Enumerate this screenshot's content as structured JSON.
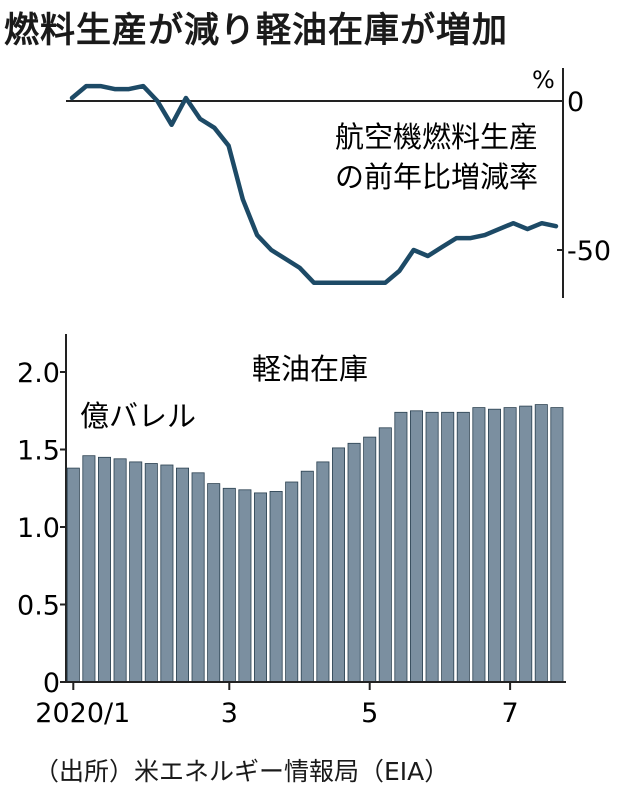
{
  "headline": "燃料生産が減り軽油在庫が増加",
  "source": "（出所）米エネルギー情報局（EIA）",
  "colors": {
    "line": "#1d4a66",
    "bar": "#7b8fa0",
    "bar_edge": "#2b4050",
    "axis": "#222222"
  },
  "chart_data": [
    {
      "type": "line",
      "title": "航空機燃料生産の前年比増減率",
      "title_lines": [
        "航空機燃料生産",
        "の前年比増減率"
      ],
      "unit": "%",
      "y_ticks": [
        {
          "value": 0,
          "label": "0"
        },
        {
          "value": -50,
          "label": "-50"
        }
      ],
      "ylim": [
        -65,
        6
      ],
      "x": [
        0,
        1,
        2,
        3,
        4,
        5,
        6,
        7,
        8,
        9,
        10,
        11,
        12,
        13,
        14,
        15,
        16,
        17,
        18,
        19,
        20,
        21,
        22,
        23,
        24,
        25,
        26,
        27,
        28,
        29,
        30,
        31,
        32,
        33,
        34
      ],
      "values": [
        1,
        5,
        5,
        4,
        4,
        5,
        0,
        -8,
        1,
        -6,
        -9,
        -15,
        -33,
        -45,
        -50,
        -53,
        -56,
        -61,
        -61,
        -61,
        -61,
        -61,
        -61,
        -57,
        -50,
        -52,
        -49,
        -46,
        -46,
        -45,
        -43,
        -41,
        -43,
        -41,
        -42
      ]
    },
    {
      "type": "bar",
      "title": "軽油在庫",
      "unit": "億バレル",
      "y_ticks": [
        {
          "value": 0,
          "label": "0"
        },
        {
          "value": 0.5,
          "label": "0.5"
        },
        {
          "value": 1.0,
          "label": "1.0"
        },
        {
          "value": 1.5,
          "label": "1.5"
        },
        {
          "value": 2.0,
          "label": "2.0"
        }
      ],
      "ylim": [
        0,
        2.2
      ],
      "x_ticks": [
        {
          "index": 0,
          "label": "2020/1"
        },
        {
          "index": 10,
          "label": "3"
        },
        {
          "index": 19,
          "label": "5"
        },
        {
          "index": 28,
          "label": "7"
        }
      ],
      "values": [
        1.38,
        1.46,
        1.45,
        1.44,
        1.42,
        1.41,
        1.4,
        1.38,
        1.35,
        1.28,
        1.25,
        1.24,
        1.22,
        1.23,
        1.29,
        1.36,
        1.42,
        1.51,
        1.54,
        1.58,
        1.64,
        1.74,
        1.75,
        1.74,
        1.74,
        1.74,
        1.77,
        1.76,
        1.77,
        1.78,
        1.79,
        1.77
      ]
    }
  ]
}
